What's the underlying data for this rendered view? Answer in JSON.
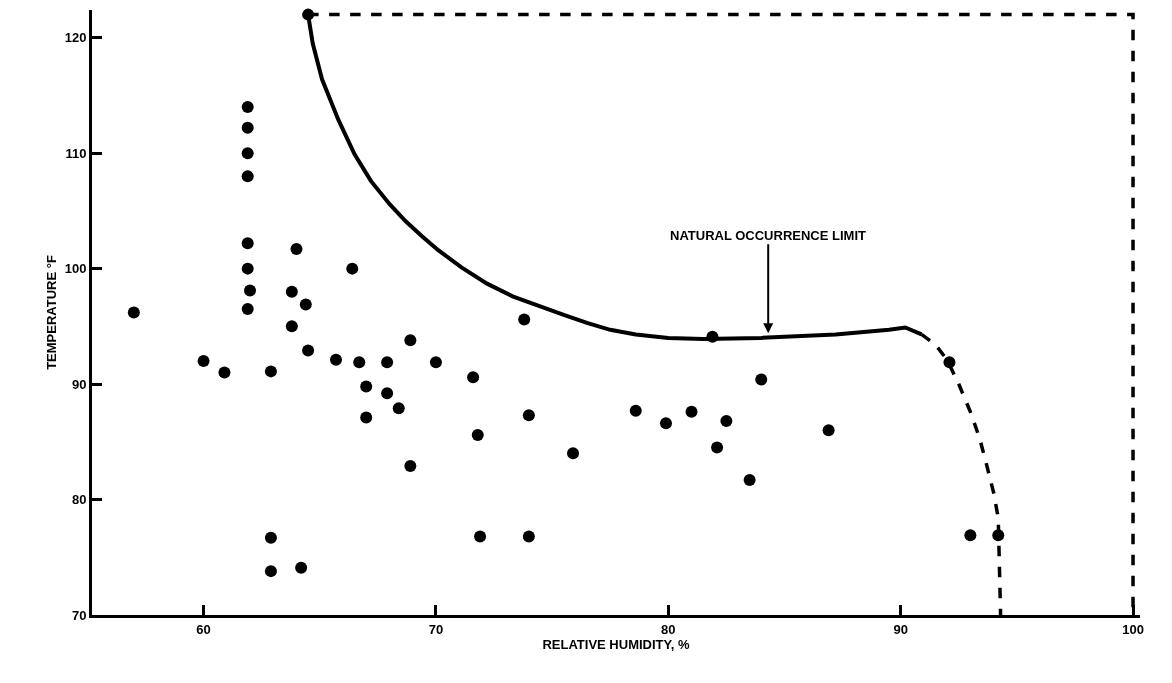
{
  "chart_data": {
    "type": "scatter",
    "xlabel": "RELATIVE HUMIDITY, %",
    "ylabel": "TEMPERATURE °F",
    "xlim": [
      55.2,
      100.3
    ],
    "ylim": [
      70,
      122.4
    ],
    "xticks": [
      60,
      70,
      80,
      90,
      100
    ],
    "yticks": [
      70,
      80,
      90,
      100,
      110,
      120
    ],
    "marker": "circle",
    "series": [
      {
        "color": "#000000",
        "x": [
          57,
          60,
          60.9,
          62.9,
          62.9,
          62.9,
          64.2,
          61.9,
          61.9,
          61.9,
          61.9,
          61.9,
          61.9,
          62,
          61.9,
          63.8,
          63.8,
          64.0,
          64.4,
          64.5,
          65.7,
          66.7,
          67.9,
          68.9,
          70.0,
          71.6,
          66.4,
          67.0,
          67.9,
          68.4,
          67.0,
          68.9,
          71.8,
          71.9,
          73.8,
          74.0,
          75.9,
          74.0,
          78.6,
          79.9,
          81.0,
          81.9,
          82.5,
          82.1,
          83.5,
          84.0,
          86.9,
          92.1,
          93.0,
          94.2,
          64.5
        ],
        "values": [
          96.2,
          92.0,
          91.0,
          91.1,
          76.7,
          73.8,
          74.1,
          114,
          112.2,
          110,
          108,
          102.2,
          100,
          98.1,
          96.5,
          98.0,
          95.0,
          101.7,
          96.9,
          92.9,
          92.1,
          91.9,
          91.9,
          93.8,
          91.9,
          90.6,
          100,
          89.8,
          89.2,
          87.9,
          87.1,
          82.9,
          85.6,
          76.8,
          95.6,
          87.3,
          84.0,
          76.8,
          87.7,
          86.6,
          87.6,
          94.1,
          86.8,
          84.5,
          81.7,
          90.4,
          86.0,
          91.9,
          76.9,
          76.9,
          122
        ]
      },
      {
        "type": "line",
        "color": "#000000",
        "marker": "none",
        "line_style": "solid",
        "x": [
          64.5,
          64.7,
          65.1,
          65.8,
          66.5,
          67.2,
          68.0,
          68.7,
          69.4,
          70.1,
          71.1,
          72.2,
          73.3,
          74.4,
          75.5,
          76.5,
          77.5,
          78.6,
          80.0,
          81.5,
          84.0,
          87.2,
          89.5,
          90.2,
          90.9
        ],
        "values": [
          122,
          119.5,
          116.4,
          112.9,
          109.9,
          107.6,
          105.6,
          104.1,
          102.8,
          101.6,
          100.1,
          98.7,
          97.6,
          96.8,
          96.0,
          95.3,
          94.7,
          94.3,
          94.0,
          93.9,
          94.0,
          94.3,
          94.7,
          94.9,
          94.3
        ]
      },
      {
        "type": "line",
        "color": "#000000",
        "marker": "none",
        "line_style": "dashed",
        "x": [
          90.9,
          91.5,
          92.0,
          92.5,
          93.0,
          93.4,
          93.7,
          94.0,
          94.2,
          94.3
        ],
        "values": [
          94.3,
          93.4,
          92.1,
          90.0,
          87.6,
          85.3,
          83.0,
          80.6,
          78.4,
          70
        ]
      },
      {
        "type": "line",
        "color": "#000000",
        "marker": "none",
        "line_style": "dashed",
        "x": [
          64.5,
          100,
          100
        ],
        "values": [
          122,
          122,
          70
        ]
      }
    ],
    "annotations": [
      {
        "text": "NATURAL OCCURRENCE LIMIT",
        "x": 84.3,
        "y": 94.4
      }
    ]
  }
}
